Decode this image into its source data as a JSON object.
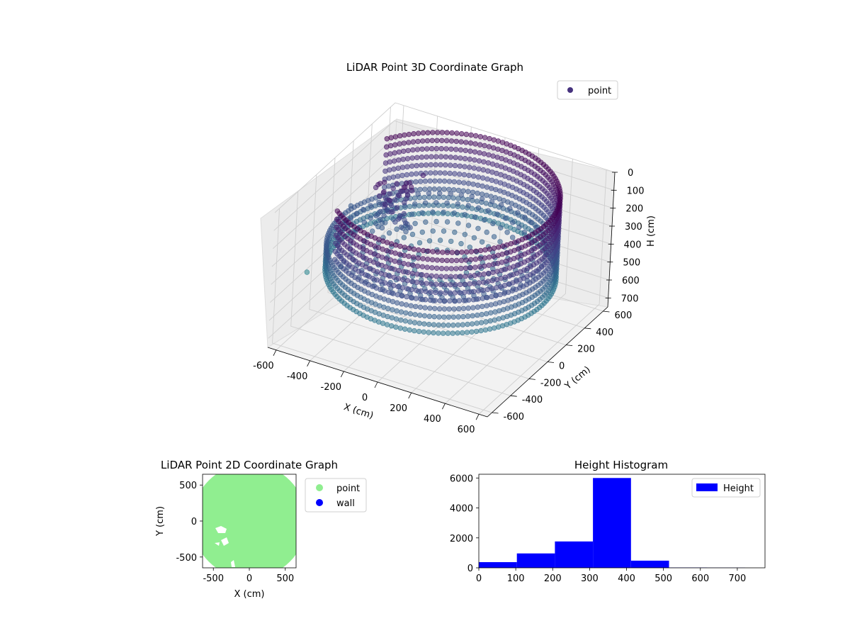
{
  "chart_data": [
    {
      "type": "scatter",
      "title": "LiDAR Point 3D Coordinate Graph",
      "xlabel": "X (cm)",
      "ylabel": "Y (cm)",
      "zlabel": "H (cm)",
      "xticks": [
        -600,
        -400,
        -200,
        0,
        200,
        400,
        600
      ],
      "yticks": [
        -600,
        -400,
        -200,
        0,
        200,
        400,
        600
      ],
      "zticks": [
        0,
        100,
        200,
        300,
        400,
        500,
        600,
        700
      ],
      "xlim": [
        -650,
        650
      ],
      "ylim": [
        -650,
        650
      ],
      "zlim": [
        0,
        750
      ],
      "z_inverted": true,
      "legend": {
        "placement": "top-right",
        "entries": [
          {
            "name": "point",
            "color": "#46327e"
          }
        ]
      },
      "series": [
        {
          "name": "point",
          "colormap": "viridis",
          "description_color_by": "height"
        }
      ],
      "grid": true
    },
    {
      "type": "scatter",
      "title": "LiDAR Point 2D Coordinate Graph",
      "xlabel": "X (cm)",
      "ylabel": "Y (cm)",
      "xticks": [
        -500,
        0,
        500
      ],
      "yticks": [
        -500,
        0,
        500
      ],
      "xlim": [
        -650,
        650
      ],
      "ylim": [
        -650,
        650
      ],
      "legend": {
        "placement": "outside-right",
        "entries": [
          {
            "name": "point",
            "color": "#90ee90"
          },
          {
            "name": "wall",
            "color": "#0000ff"
          }
        ]
      },
      "grid": false
    },
    {
      "type": "bar",
      "title": "Height Histogram",
      "xticks": [
        0,
        100,
        200,
        300,
        400,
        500,
        600,
        700
      ],
      "yticks": [
        0,
        2000,
        4000,
        6000
      ],
      "xlim": [
        0,
        775
      ],
      "ylim": [
        0,
        6250
      ],
      "bins": [
        {
          "start": 0,
          "end": 103,
          "value": 380
        },
        {
          "start": 103,
          "end": 206,
          "value": 960
        },
        {
          "start": 206,
          "end": 309,
          "value": 1760
        },
        {
          "start": 309,
          "end": 412,
          "value": 6000
        },
        {
          "start": 412,
          "end": 515,
          "value": 480
        },
        {
          "start": 515,
          "end": 618,
          "value": 20
        },
        {
          "start": 618,
          "end": 721,
          "value": 10
        }
      ],
      "color": "#0000ff",
      "legend": {
        "placement": "top-right",
        "entries": [
          {
            "name": "Height",
            "color": "#0000ff"
          }
        ]
      },
      "grid": false
    }
  ]
}
